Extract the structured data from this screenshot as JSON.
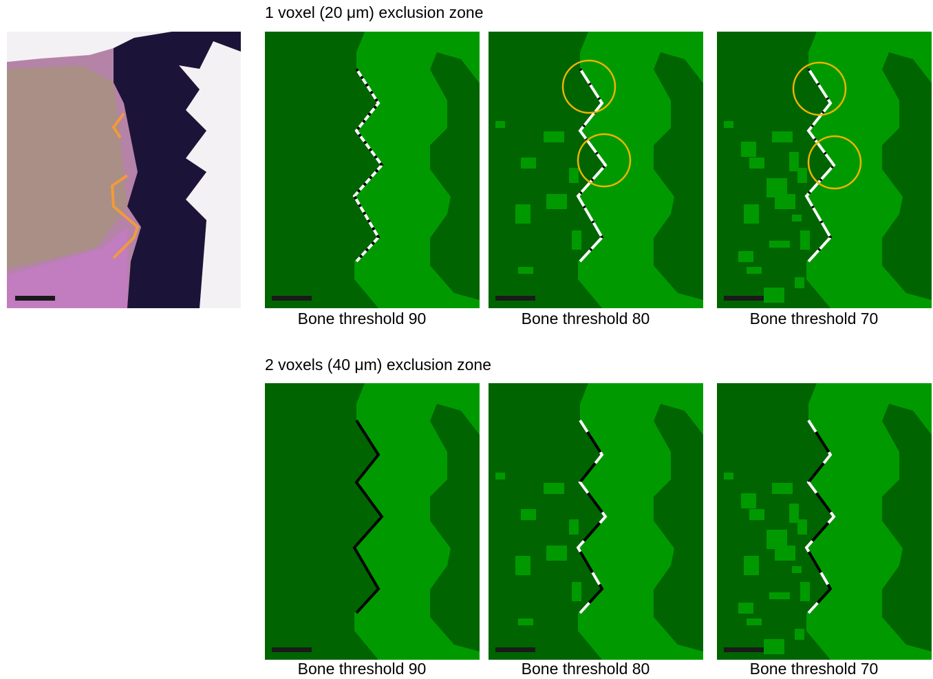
{
  "rows": [
    {
      "title": "1 voxel (20 μm) exclusion zone",
      "panels": [
        {
          "caption": "Bone threshold 90"
        },
        {
          "caption": "Bone threshold 80"
        },
        {
          "caption": "Bone threshold 70"
        }
      ]
    },
    {
      "title": "2 voxels (40 μm) exclusion zone",
      "panels": [
        {
          "caption": "Bone threshold 90"
        },
        {
          "caption": "Bone threshold 80"
        },
        {
          "caption": "Bone threshold 70"
        }
      ]
    }
  ]
}
